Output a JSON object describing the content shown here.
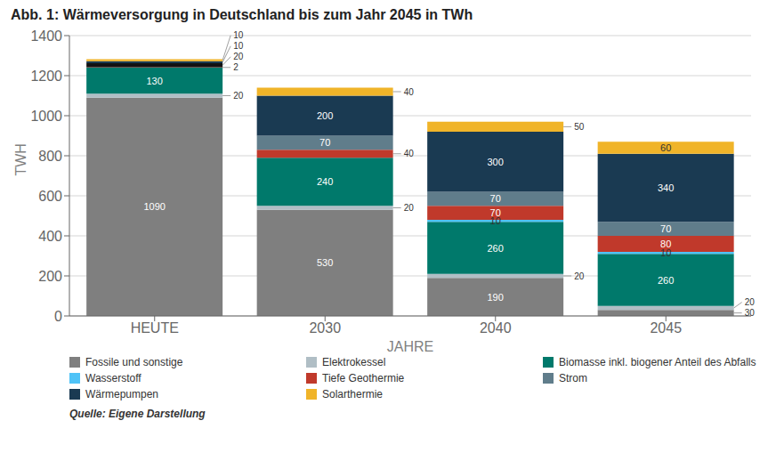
{
  "chart_data": {
    "type": "bar",
    "title": "Abb. 1: Wärmeversorgung in Deutschland bis zum Jahr 2045 in TWh",
    "xlabel": "JAHRE",
    "ylabel": "TWH",
    "source": "Quelle: Eigene Darstellung",
    "categories": [
      "HEUTE",
      "2030",
      "2040",
      "2045"
    ],
    "series": [
      {
        "name": "Fossile und sonstige",
        "color": "#7f7f7f",
        "values": [
          1090,
          530,
          190,
          30
        ]
      },
      {
        "name": "Elektrokessel",
        "color": "#b0bec5",
        "values": [
          20,
          20,
          20,
          20
        ]
      },
      {
        "name": "Biomasse inkl. biogener Anteil des Abfalls",
        "color": "#00796b",
        "values": [
          130,
          240,
          260,
          260
        ]
      },
      {
        "name": "Wasserstoff",
        "color": "#4fc3f7",
        "values": [
          0,
          0,
          10,
          10
        ]
      },
      {
        "name": "Tiefe Geothermie",
        "color": "#c0392b",
        "values": [
          2,
          40,
          70,
          80
        ]
      },
      {
        "name": "Strom",
        "color": "#607d8b",
        "colors": [
          "#111111",
          "#607d8b",
          "#607d8b",
          "#607d8b"
        ],
        "values": [
          20,
          70,
          70,
          70
        ]
      },
      {
        "name": "Wärmepumpen",
        "color": "#1a3a52",
        "values": [
          10,
          200,
          300,
          340
        ]
      },
      {
        "name": "Solarthermie",
        "color": "#f0b429",
        "values": [
          10,
          40,
          50,
          60
        ]
      }
    ],
    "ylim": [
      0,
      1400
    ],
    "yticks": [
      0,
      200,
      400,
      600,
      800,
      1000,
      1200,
      1400
    ],
    "stacked": true,
    "grid": true,
    "legend": "bottom",
    "data_labels": true
  }
}
